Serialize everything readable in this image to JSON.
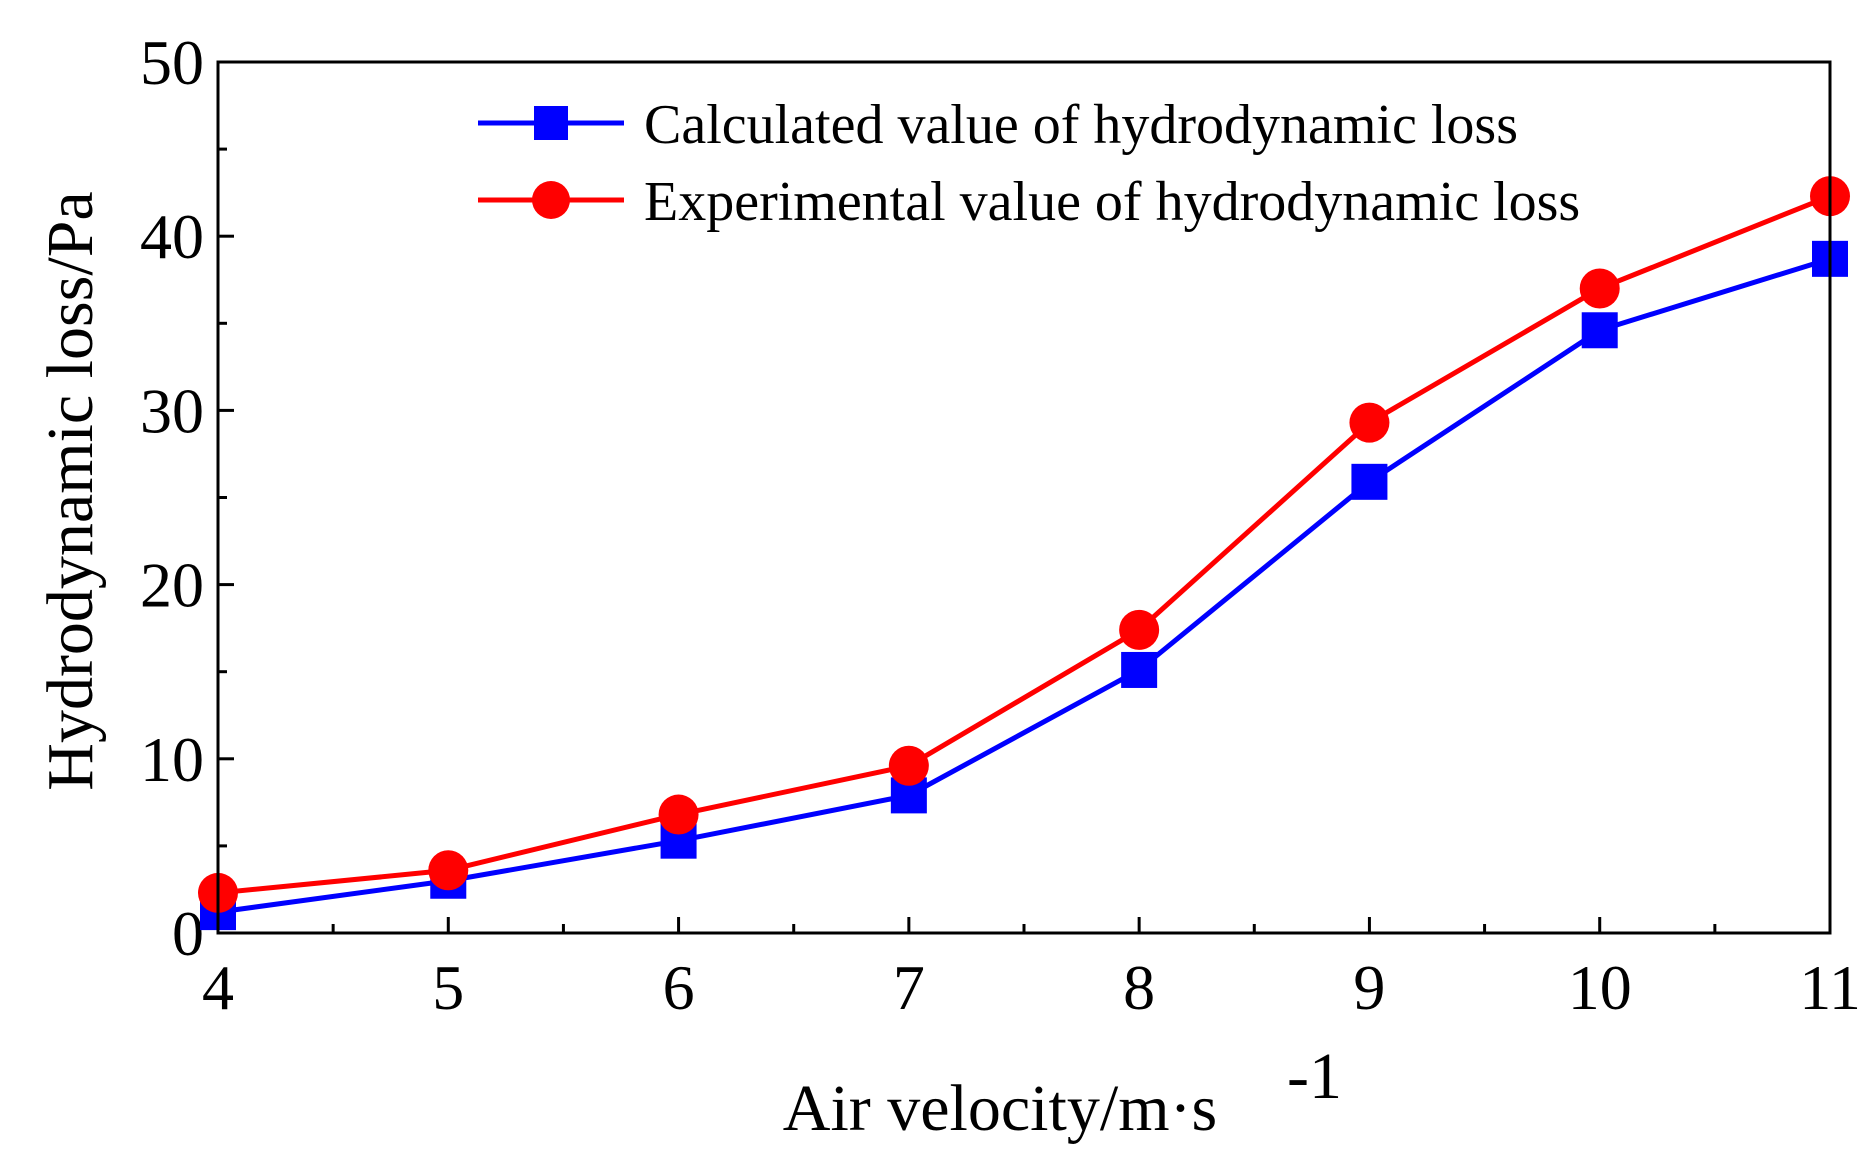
{
  "chart_data": {
    "type": "line",
    "x": [
      4,
      5,
      6,
      7,
      8,
      9,
      10,
      11
    ],
    "series": [
      {
        "name": "Calculated value of hydrodynamic loss",
        "color": "#0000ff",
        "marker": "square",
        "values": [
          1.2,
          3.0,
          5.3,
          7.9,
          15.1,
          25.9,
          34.6,
          38.7
        ]
      },
      {
        "name": "Experimental value of hydrodynamic loss",
        "color": "#ff0000",
        "marker": "circle",
        "values": [
          2.3,
          3.6,
          6.8,
          9.6,
          17.4,
          29.3,
          37.0,
          42.3
        ]
      }
    ],
    "xlabel": "Air velocity/m·s",
    "xlabel_superscript": "-1",
    "ylabel": "Hydrodynamic loss/Pa",
    "xlim": [
      4,
      11
    ],
    "ylim": [
      0,
      50
    ],
    "x_ticks": [
      "4",
      "5",
      "6",
      "7",
      "8",
      "9",
      "10",
      "11"
    ],
    "y_ticks": [
      "0",
      "10",
      "20",
      "30",
      "40",
      "50"
    ],
    "legend_position": "top-right"
  }
}
